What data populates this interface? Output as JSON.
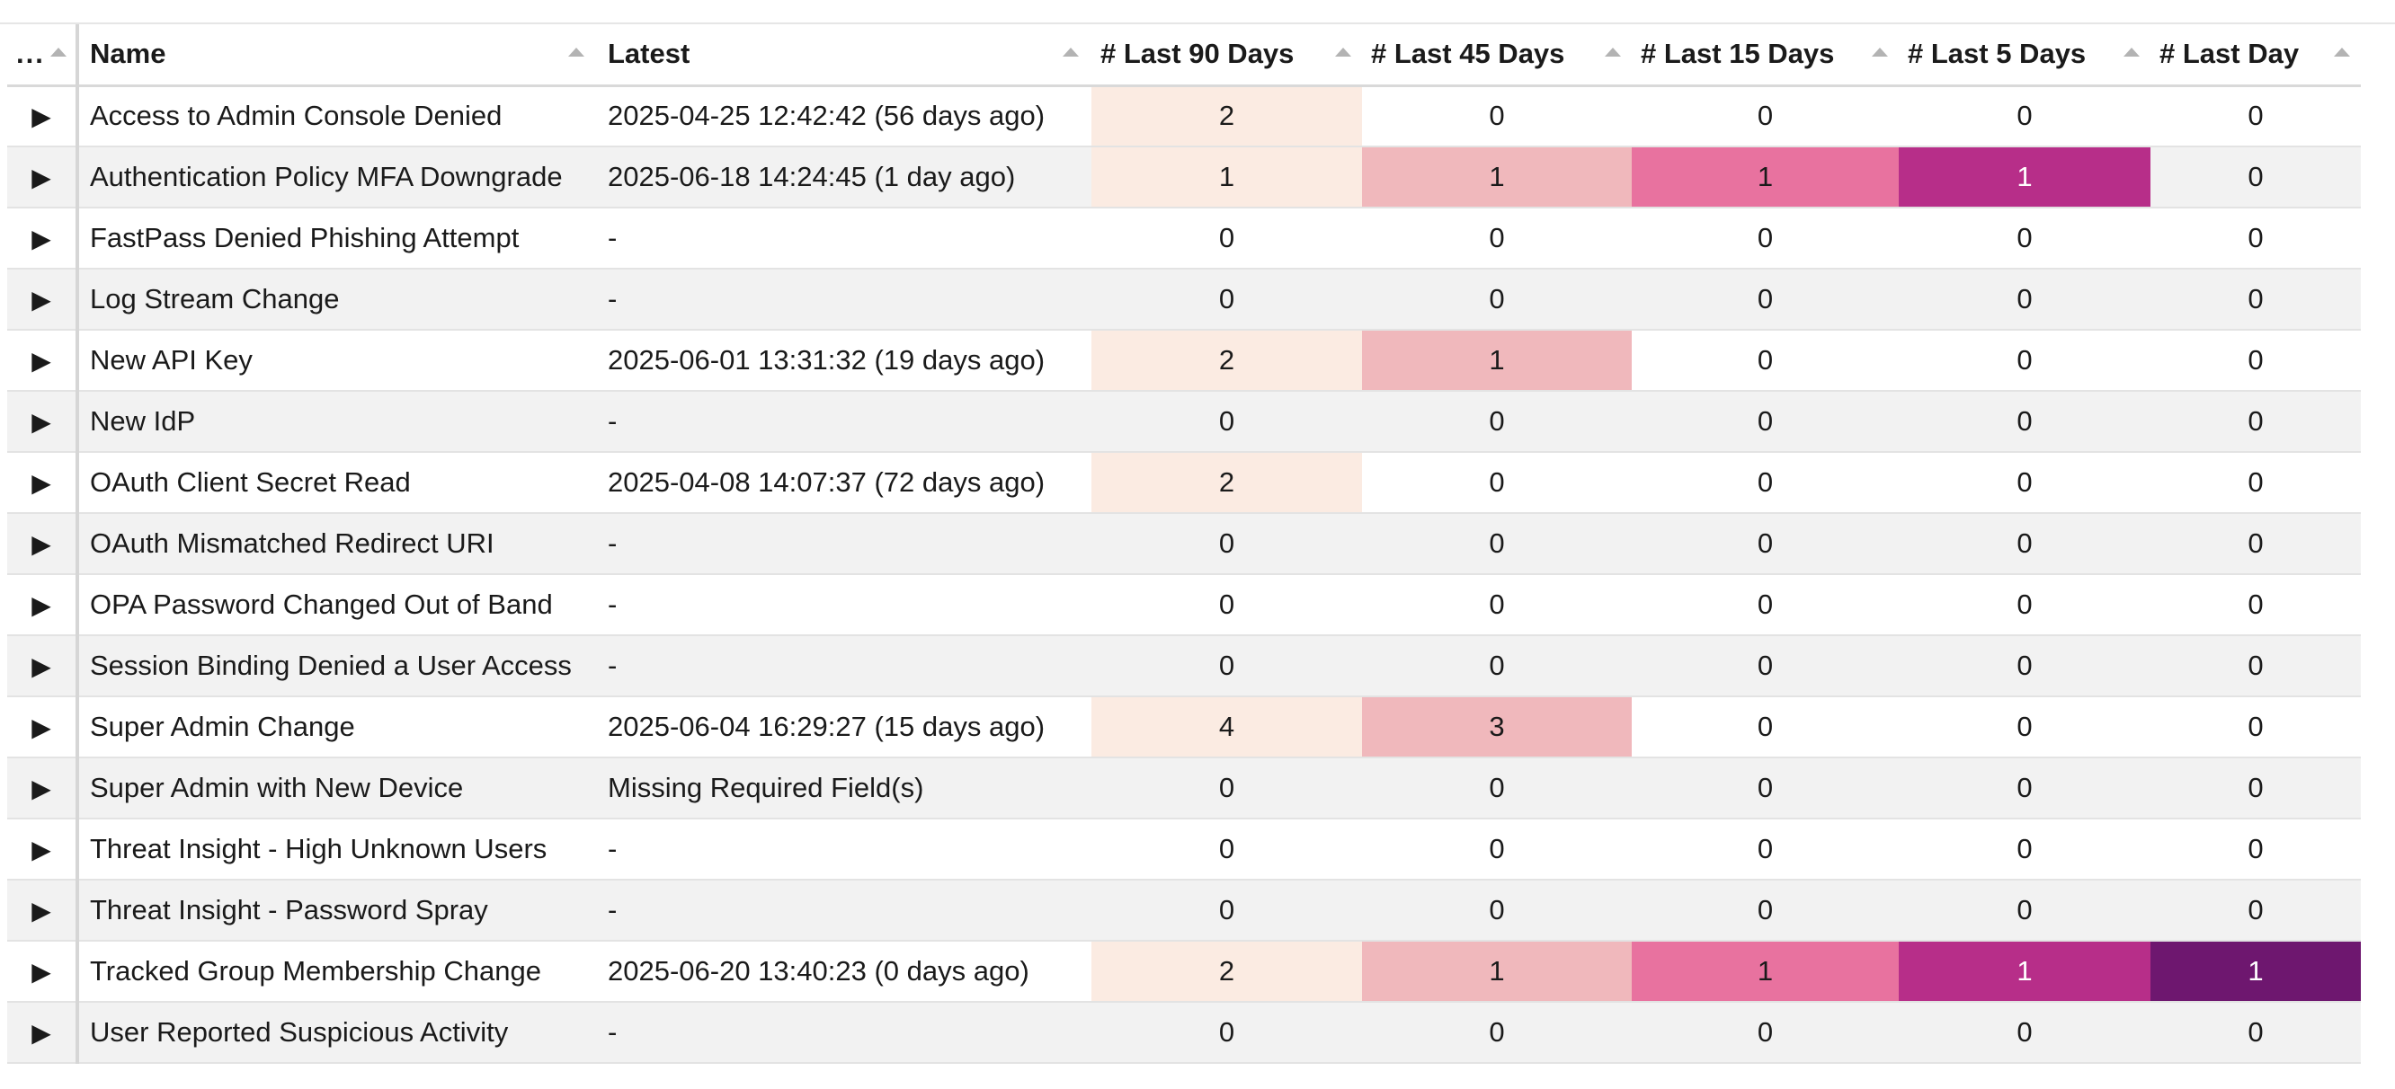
{
  "table": {
    "columns": {
      "menu": "...",
      "name": "Name",
      "latest": "Latest",
      "last90": "# Last 90 Days",
      "last45": "# Last 45 Days",
      "last15": "# Last 15 Days",
      "last5": "# Last 5 Days",
      "last1": "# Last Day"
    },
    "expand_icon": "▶",
    "rows": [
      {
        "name": "Access to Admin Console Denied",
        "latest": "2025-04-25 12:42:42 (56 days ago)",
        "c90": "2",
        "c45": "0",
        "c15": "0",
        "c5": "0",
        "c1": "0"
      },
      {
        "name": "Authentication Policy MFA Downgrade",
        "latest": "2025-06-18 14:24:45 (1 day ago)",
        "c90": "1",
        "c45": "1",
        "c15": "1",
        "c5": "1",
        "c1": "0"
      },
      {
        "name": "FastPass Denied Phishing Attempt",
        "latest": "-",
        "c90": "0",
        "c45": "0",
        "c15": "0",
        "c5": "0",
        "c1": "0"
      },
      {
        "name": "Log Stream Change",
        "latest": "-",
        "c90": "0",
        "c45": "0",
        "c15": "0",
        "c5": "0",
        "c1": "0"
      },
      {
        "name": "New API Key",
        "latest": "2025-06-01 13:31:32 (19 days ago)",
        "c90": "2",
        "c45": "1",
        "c15": "0",
        "c5": "0",
        "c1": "0"
      },
      {
        "name": "New IdP",
        "latest": "-",
        "c90": "0",
        "c45": "0",
        "c15": "0",
        "c5": "0",
        "c1": "0"
      },
      {
        "name": "OAuth Client Secret Read",
        "latest": "2025-04-08 14:07:37 (72 days ago)",
        "c90": "2",
        "c45": "0",
        "c15": "0",
        "c5": "0",
        "c1": "0"
      },
      {
        "name": "OAuth Mismatched Redirect URI",
        "latest": "-",
        "c90": "0",
        "c45": "0",
        "c15": "0",
        "c5": "0",
        "c1": "0"
      },
      {
        "name": "OPA Password Changed Out of Band",
        "latest": "-",
        "c90": "0",
        "c45": "0",
        "c15": "0",
        "c5": "0",
        "c1": "0"
      },
      {
        "name": "Session Binding Denied a User Access",
        "latest": "-",
        "c90": "0",
        "c45": "0",
        "c15": "0",
        "c5": "0",
        "c1": "0"
      },
      {
        "name": "Super Admin Change",
        "latest": "2025-06-04 16:29:27 (15 days ago)",
        "c90": "4",
        "c45": "3",
        "c15": "0",
        "c5": "0",
        "c1": "0"
      },
      {
        "name": "Super Admin with New Device",
        "latest": "Missing Required Field(s)",
        "c90": "0",
        "c45": "0",
        "c15": "0",
        "c5": "0",
        "c1": "0"
      },
      {
        "name": "Threat Insight - High Unknown Users",
        "latest": "-",
        "c90": "0",
        "c45": "0",
        "c15": "0",
        "c5": "0",
        "c1": "0"
      },
      {
        "name": "Threat Insight - Password Spray",
        "latest": "-",
        "c90": "0",
        "c45": "0",
        "c15": "0",
        "c5": "0",
        "c1": "0"
      },
      {
        "name": "Tracked Group Membership Change",
        "latest": "2025-06-20 13:40:23 (0 days ago)",
        "c90": "2",
        "c45": "1",
        "c15": "1",
        "c5": "1",
        "c1": "1"
      },
      {
        "name": "User Reported Suspicious Activity",
        "latest": "-",
        "c90": "0",
        "c45": "0",
        "c15": "0",
        "c5": "0",
        "c1": "0"
      }
    ]
  },
  "colors": {
    "peach": "#fbebe2",
    "pink": "#f0b8bc",
    "rose": "#e8729f",
    "magenta": "#b72e89",
    "purple": "#6e176f",
    "zebra": "#f2f2f2"
  }
}
